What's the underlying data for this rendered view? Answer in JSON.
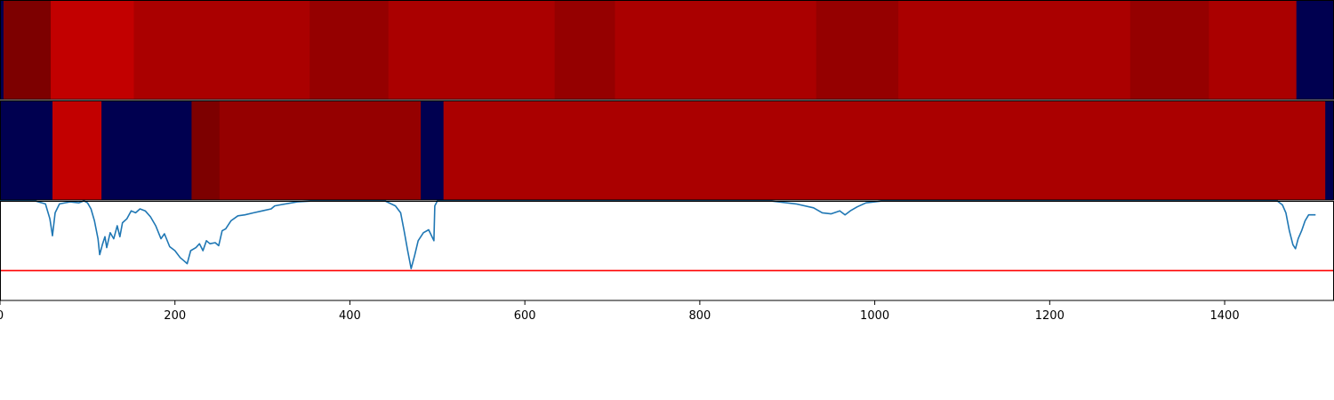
{
  "chart_data": [
    {
      "type": "heatmap",
      "x_range": [
        0,
        1525
      ],
      "segments": [
        {
          "x0": 0,
          "x1": 4,
          "color": "#000050"
        },
        {
          "x0": 4,
          "x1": 58,
          "color": "#7d0000"
        },
        {
          "x0": 58,
          "x1": 153,
          "color": "#c20000"
        },
        {
          "x0": 153,
          "x1": 354,
          "color": "#aa0000"
        },
        {
          "x0": 354,
          "x1": 444,
          "color": "#950000"
        },
        {
          "x0": 444,
          "x1": 634,
          "color": "#aa0000"
        },
        {
          "x0": 634,
          "x1": 703,
          "color": "#950000"
        },
        {
          "x0": 703,
          "x1": 933,
          "color": "#aa0000"
        },
        {
          "x0": 933,
          "x1": 1027,
          "color": "#950000"
        },
        {
          "x0": 1027,
          "x1": 1292,
          "color": "#aa0000"
        },
        {
          "x0": 1292,
          "x1": 1382,
          "color": "#950000"
        },
        {
          "x0": 1382,
          "x1": 1482,
          "color": "#aa0000"
        },
        {
          "x0": 1482,
          "x1": 1525,
          "color": "#000050"
        }
      ]
    },
    {
      "type": "heatmap",
      "x_range": [
        0,
        1525
      ],
      "segments": [
        {
          "x0": 0,
          "x1": 60,
          "color": "#000050"
        },
        {
          "x0": 60,
          "x1": 116,
          "color": "#c20000"
        },
        {
          "x0": 116,
          "x1": 219,
          "color": "#000050"
        },
        {
          "x0": 219,
          "x1": 251,
          "color": "#7d0000"
        },
        {
          "x0": 251,
          "x1": 481,
          "color": "#950000"
        },
        {
          "x0": 481,
          "x1": 507,
          "color": "#000050"
        },
        {
          "x0": 507,
          "x1": 1515,
          "color": "#aa0000"
        },
        {
          "x0": 1515,
          "x1": 1525,
          "color": "#000050"
        }
      ]
    },
    {
      "type": "line",
      "xlim": [
        0,
        1525
      ],
      "ylim": [
        -1.0,
        0.0
      ],
      "x_ticks": [
        0,
        200,
        400,
        600,
        800,
        1000,
        1200,
        1400
      ],
      "x_tick_labels": [
        "0",
        "200",
        "400",
        "600",
        "800",
        "1000",
        "1200",
        "1400"
      ],
      "line_color": "#1f77b4",
      "threshold": 0.7,
      "threshold_color": "#ff0000",
      "series": [
        {
          "points": [
            [
              0,
              0.0
            ],
            [
              40,
              0.0
            ],
            [
              52,
              -0.03
            ],
            [
              57,
              -0.18
            ],
            [
              60,
              -0.35
            ],
            [
              63,
              -0.12
            ],
            [
              68,
              -0.03
            ],
            [
              80,
              -0.01
            ],
            [
              90,
              -0.02
            ],
            [
              96,
              0.0
            ],
            [
              100,
              -0.02
            ],
            [
              104,
              -0.08
            ],
            [
              108,
              -0.2
            ],
            [
              112,
              -0.38
            ],
            [
              114,
              -0.54
            ],
            [
              117,
              -0.44
            ],
            [
              120,
              -0.36
            ],
            [
              122,
              -0.47
            ],
            [
              126,
              -0.32
            ],
            [
              130,
              -0.38
            ],
            [
              134,
              -0.25
            ],
            [
              137,
              -0.36
            ],
            [
              140,
              -0.22
            ],
            [
              145,
              -0.18
            ],
            [
              150,
              -0.1
            ],
            [
              155,
              -0.12
            ],
            [
              160,
              -0.08
            ],
            [
              166,
              -0.1
            ],
            [
              172,
              -0.16
            ],
            [
              178,
              -0.25
            ],
            [
              184,
              -0.38
            ],
            [
              188,
              -0.33
            ],
            [
              194,
              -0.46
            ],
            [
              200,
              -0.5
            ],
            [
              206,
              -0.57
            ],
            [
              210,
              -0.6
            ],
            [
              214,
              -0.63
            ],
            [
              218,
              -0.5
            ],
            [
              224,
              -0.47
            ],
            [
              228,
              -0.43
            ],
            [
              232,
              -0.5
            ],
            [
              236,
              -0.4
            ],
            [
              240,
              -0.43
            ],
            [
              246,
              -0.42
            ],
            [
              250,
              -0.45
            ],
            [
              254,
              -0.3
            ],
            [
              258,
              -0.28
            ],
            [
              264,
              -0.2
            ],
            [
              272,
              -0.15
            ],
            [
              280,
              -0.14
            ],
            [
              290,
              -0.12
            ],
            [
              300,
              -0.1
            ],
            [
              310,
              -0.08
            ],
            [
              314,
              -0.05
            ],
            [
              320,
              -0.04
            ],
            [
              340,
              -0.01
            ],
            [
              360,
              0.0
            ],
            [
              440,
              0.0
            ],
            [
              452,
              -0.05
            ],
            [
              458,
              -0.12
            ],
            [
              462,
              -0.3
            ],
            [
              466,
              -0.5
            ],
            [
              470,
              -0.68
            ],
            [
              474,
              -0.55
            ],
            [
              478,
              -0.4
            ],
            [
              484,
              -0.32
            ],
            [
              490,
              -0.29
            ],
            [
              496,
              -0.4
            ],
            [
              497,
              -0.05
            ],
            [
              500,
              0.0
            ],
            [
              880,
              0.0
            ],
            [
              910,
              -0.03
            ],
            [
              930,
              -0.07
            ],
            [
              940,
              -0.12
            ],
            [
              950,
              -0.13
            ],
            [
              960,
              -0.1
            ],
            [
              966,
              -0.14
            ],
            [
              972,
              -0.1
            ],
            [
              980,
              -0.06
            ],
            [
              990,
              -0.02
            ],
            [
              1010,
              0.0
            ],
            [
              1460,
              0.0
            ],
            [
              1466,
              -0.04
            ],
            [
              1470,
              -0.12
            ],
            [
              1474,
              -0.3
            ],
            [
              1478,
              -0.44
            ],
            [
              1481,
              -0.48
            ],
            [
              1484,
              -0.38
            ],
            [
              1488,
              -0.3
            ],
            [
              1492,
              -0.2
            ],
            [
              1496,
              -0.14
            ],
            [
              1500,
              -0.14
            ],
            [
              1504,
              -0.14
            ]
          ]
        }
      ]
    }
  ]
}
